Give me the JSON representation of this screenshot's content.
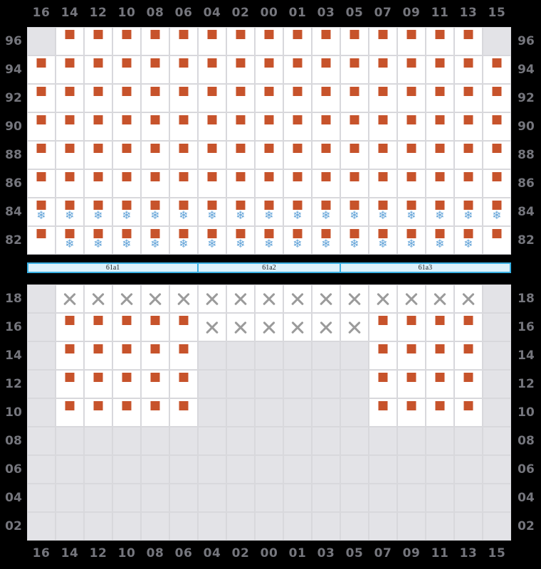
{
  "axis": {
    "columns": [
      "16",
      "14",
      "12",
      "10",
      "08",
      "06",
      "04",
      "02",
      "00",
      "01",
      "03",
      "05",
      "07",
      "09",
      "11",
      "13",
      "15"
    ]
  },
  "deck_section": {
    "name": "above-deck",
    "row_labels": [
      "96",
      "94",
      "92",
      "90",
      "88",
      "86",
      "84",
      "82"
    ],
    "rows": [
      {
        "tier": "96",
        "cells": [
          [
            "e",
            1
          ],
          [
            "s",
            15
          ],
          [
            "e",
            1
          ]
        ]
      },
      {
        "tier": "94",
        "cells": [
          [
            "s",
            17
          ]
        ]
      },
      {
        "tier": "92",
        "cells": [
          [
            "s",
            17
          ]
        ]
      },
      {
        "tier": "90",
        "cells": [
          [
            "s",
            17
          ]
        ]
      },
      {
        "tier": "88",
        "cells": [
          [
            "s",
            17
          ]
        ]
      },
      {
        "tier": "86",
        "cells": [
          [
            "s",
            17
          ]
        ]
      },
      {
        "tier": "84",
        "cells": [
          [
            "f",
            17
          ]
        ]
      },
      {
        "tier": "82",
        "cells": [
          [
            "s",
            1
          ],
          [
            "f",
            15
          ],
          [
            "s",
            1
          ]
        ]
      }
    ]
  },
  "hold_section": {
    "name": "below-deck",
    "row_labels": [
      "18",
      "16",
      "14",
      "12",
      "10",
      "08",
      "06",
      "04",
      "02"
    ],
    "rows": [
      {
        "tier": "18",
        "cells": [
          [
            "e",
            1
          ],
          [
            "x",
            15
          ],
          [
            "e",
            1
          ]
        ]
      },
      {
        "tier": "16",
        "cells": [
          [
            "e",
            1
          ],
          [
            "s",
            5
          ],
          [
            "x",
            6
          ],
          [
            "s",
            4
          ],
          [
            "e",
            1
          ]
        ]
      },
      {
        "tier": "14",
        "cells": [
          [
            "e",
            1
          ],
          [
            "s",
            5
          ],
          [
            "e",
            6
          ],
          [
            "s",
            4
          ],
          [
            "e",
            1
          ]
        ]
      },
      {
        "tier": "12",
        "cells": [
          [
            "e",
            1
          ],
          [
            "s",
            5
          ],
          [
            "e",
            6
          ],
          [
            "s",
            4
          ],
          [
            "e",
            1
          ]
        ]
      },
      {
        "tier": "10",
        "cells": [
          [
            "e",
            1
          ],
          [
            "s",
            5
          ],
          [
            "e",
            6
          ],
          [
            "s",
            4
          ],
          [
            "e",
            1
          ]
        ]
      },
      {
        "tier": "08",
        "cells": [
          [
            "e",
            17
          ]
        ]
      },
      {
        "tier": "06",
        "cells": [
          [
            "e",
            17
          ]
        ]
      },
      {
        "tier": "04",
        "cells": [
          [
            "e",
            17
          ]
        ]
      },
      {
        "tier": "02",
        "cells": [
          [
            "e",
            17
          ]
        ]
      }
    ]
  },
  "hatch_covers": [
    {
      "label": "61a1",
      "span": 6
    },
    {
      "label": "61a2",
      "span": 5
    },
    {
      "label": "61a3",
      "span": 6
    }
  ],
  "markers": {
    "s": "container-square",
    "f": "container-square-with-reefer-snowflake",
    "x": "blocked-x",
    "e": "empty-disabled-slot",
    "snowflake_char": "❄"
  },
  "colors": {
    "background": "#000000",
    "label_gray": "#75767D",
    "cell_white": "#FFFFFF",
    "cell_empty_gray": "#E3E3E7",
    "grid_line": "#D8D8DC",
    "container_orange": "#C7532B",
    "reefer_blue": "#64A4D8",
    "x_gray": "#9B9B9B",
    "hatch_fill": "#DDF1FA",
    "hatch_border": "#3AB0E3"
  }
}
